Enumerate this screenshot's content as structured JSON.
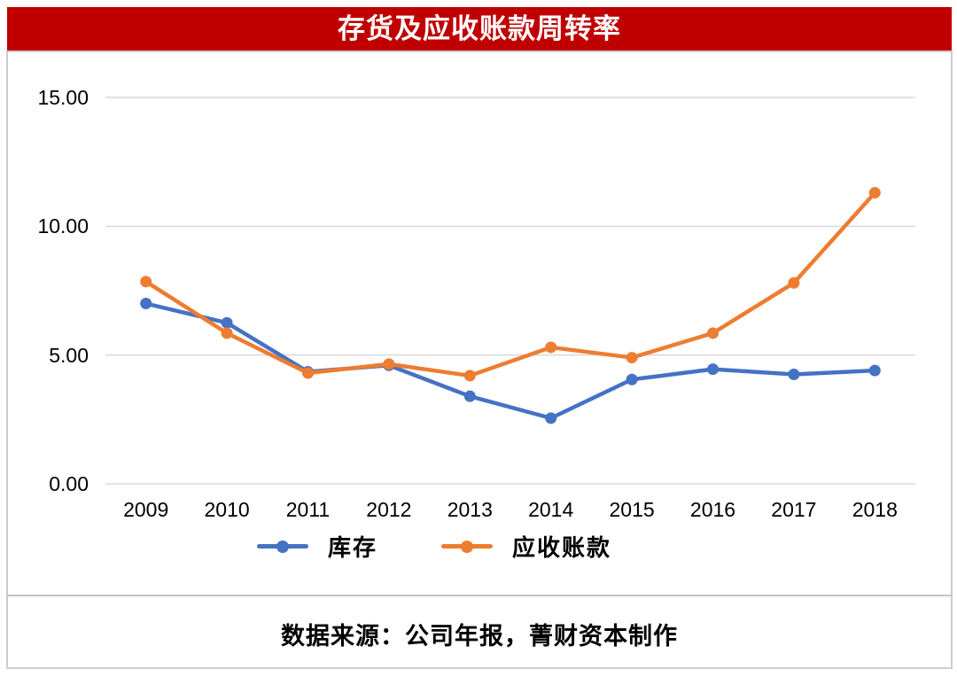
{
  "header": {
    "title": "存货及应收账款周转率",
    "background_color": "#c00000",
    "text_color": "#ffffff"
  },
  "footer": {
    "source_text": "数据来源：公司年报，菁财资本制作"
  },
  "chart_data": {
    "type": "line",
    "title": "存货及应收账款周转率",
    "categories": [
      "2009",
      "2010",
      "2011",
      "2012",
      "2013",
      "2014",
      "2015",
      "2016",
      "2017",
      "2018"
    ],
    "series": [
      {
        "name": "库存",
        "color": "#4472C4",
        "values": [
          7.0,
          6.25,
          4.35,
          4.6,
          3.4,
          2.55,
          4.05,
          4.45,
          4.25,
          4.4
        ]
      },
      {
        "name": "应收账款",
        "color": "#ED7D31",
        "values": [
          7.85,
          5.85,
          4.3,
          4.65,
          4.2,
          5.3,
          4.9,
          5.85,
          7.8,
          11.3
        ]
      }
    ],
    "xlabel": "",
    "ylabel": "",
    "ylim": [
      0,
      15
    ],
    "yticks": [
      0,
      5,
      10,
      15
    ],
    "ytick_labels": [
      "0.00",
      "5.00",
      "10.00",
      "15.00"
    ],
    "grid": true,
    "gridline_color": "#d9d9d9",
    "legend_position": "bottom"
  }
}
